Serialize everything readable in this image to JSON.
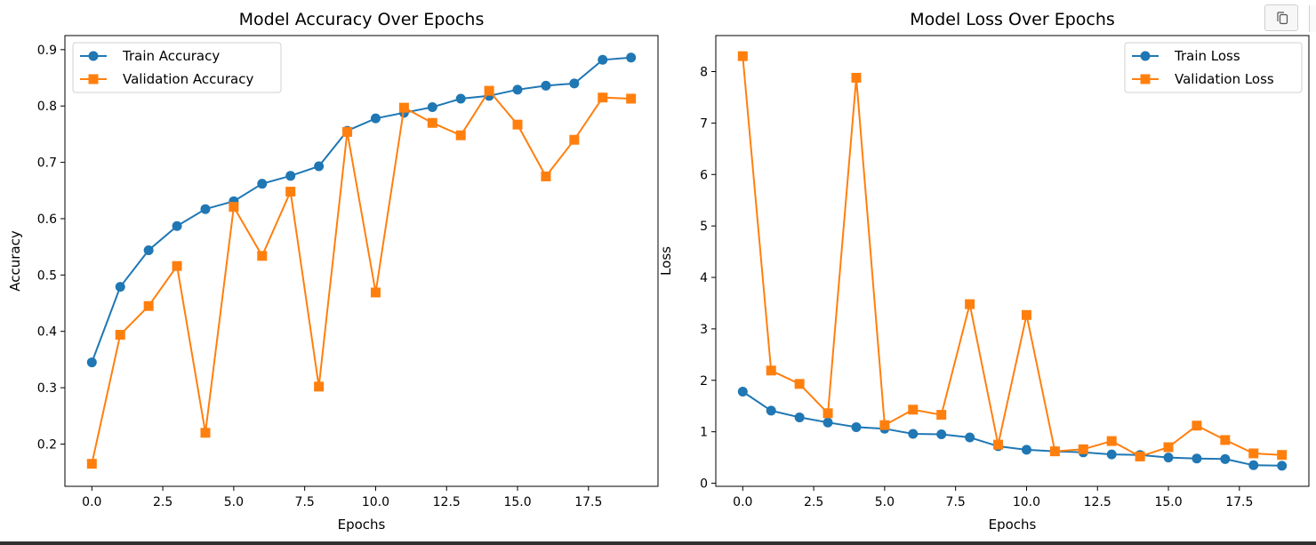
{
  "toolbar": {
    "copy_label": "copy-icon"
  },
  "chart_data": [
    {
      "type": "line",
      "title": "Model Accuracy Over Epochs",
      "xlabel": "Epochs",
      "ylabel": "Accuracy",
      "xlim": [
        -0.95,
        19.95
      ],
      "ylim": [
        0.125,
        0.925
      ],
      "xticks": [
        0.0,
        2.5,
        5.0,
        7.5,
        10.0,
        12.5,
        15.0,
        17.5
      ],
      "xtick_labels": [
        "0.0",
        "2.5",
        "5.0",
        "7.5",
        "10.0",
        "12.5",
        "15.0",
        "17.5"
      ],
      "yticks": [
        0.2,
        0.3,
        0.4,
        0.5,
        0.6,
        0.7,
        0.8,
        0.9
      ],
      "ytick_labels": [
        "0.2",
        "0.3",
        "0.4",
        "0.5",
        "0.6",
        "0.7",
        "0.8",
        "0.9"
      ],
      "grid": false,
      "legend_position": "top-left",
      "x": [
        0,
        1,
        2,
        3,
        4,
        5,
        6,
        7,
        8,
        9,
        10,
        11,
        12,
        13,
        14,
        15,
        16,
        17,
        18,
        19
      ],
      "series": [
        {
          "name": "Train Accuracy",
          "color": "#1f77b4",
          "marker": "circle",
          "values": [
            0.345,
            0.479,
            0.544,
            0.587,
            0.617,
            0.631,
            0.662,
            0.676,
            0.693,
            0.756,
            0.778,
            0.788,
            0.798,
            0.813,
            0.818,
            0.829,
            0.836,
            0.84,
            0.882,
            0.886
          ]
        },
        {
          "name": "Validation Accuracy",
          "color": "#ff7f0e",
          "marker": "square",
          "values": [
            0.165,
            0.394,
            0.445,
            0.516,
            0.22,
            0.621,
            0.534,
            0.648,
            0.302,
            0.754,
            0.469,
            0.797,
            0.77,
            0.748,
            0.827,
            0.767,
            0.675,
            0.74,
            0.815,
            0.813
          ]
        }
      ]
    },
    {
      "type": "line",
      "title": "Model Loss Over Epochs",
      "xlabel": "Epochs",
      "ylabel": "Loss",
      "xlim": [
        -0.95,
        19.95
      ],
      "ylim": [
        -0.06,
        8.7
      ],
      "xticks": [
        0.0,
        2.5,
        5.0,
        7.5,
        10.0,
        12.5,
        15.0,
        17.5
      ],
      "xtick_labels": [
        "0.0",
        "2.5",
        "5.0",
        "7.5",
        "10.0",
        "12.5",
        "15.0",
        "17.5"
      ],
      "yticks": [
        0,
        1,
        2,
        3,
        4,
        5,
        6,
        7,
        8
      ],
      "ytick_labels": [
        "0",
        "1",
        "2",
        "3",
        "4",
        "5",
        "6",
        "7",
        "8"
      ],
      "grid": false,
      "legend_position": "top-right",
      "x": [
        0,
        1,
        2,
        3,
        4,
        5,
        6,
        7,
        8,
        9,
        10,
        11,
        12,
        13,
        14,
        15,
        16,
        17,
        18,
        19
      ],
      "series": [
        {
          "name": "Train Loss",
          "color": "#1f77b4",
          "marker": "circle",
          "values": [
            1.78,
            1.41,
            1.28,
            1.18,
            1.09,
            1.06,
            0.96,
            0.95,
            0.89,
            0.72,
            0.65,
            0.62,
            0.6,
            0.56,
            0.55,
            0.5,
            0.48,
            0.47,
            0.35,
            0.34
          ]
        },
        {
          "name": "Validation Loss",
          "color": "#ff7f0e",
          "marker": "square",
          "values": [
            8.3,
            2.19,
            1.93,
            1.36,
            7.88,
            1.13,
            1.43,
            1.33,
            3.48,
            0.75,
            3.27,
            0.62,
            0.66,
            0.82,
            0.52,
            0.7,
            1.12,
            0.84,
            0.58,
            0.55
          ]
        }
      ]
    }
  ]
}
